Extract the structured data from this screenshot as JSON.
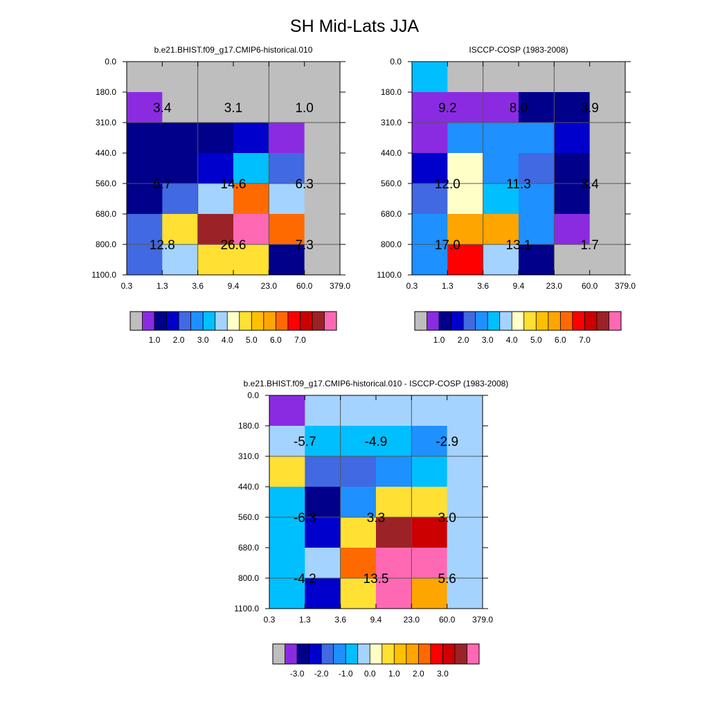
{
  "title": "SH Mid-Lats JJA",
  "chart_data": [
    {
      "type": "heatmap",
      "title": "b.e21.BHIST.f09_g17.CMIP6-historical.010",
      "x_ticks": [
        "0.3",
        "1.3",
        "3.6",
        "9.4",
        "23.0",
        "60.0",
        "379.0"
      ],
      "y_ticks": [
        "0.0",
        "180.0",
        "310.0",
        "440.0",
        "560.0",
        "680.0",
        "800.0",
        "1100.0"
      ],
      "cells": [
        [
          "#BEBEBE",
          "#BEBEBE",
          "#BEBEBE",
          "#BEBEBE",
          "#BEBEBE",
          "#BEBEBE"
        ],
        [
          "#8A2BE2",
          "#BEBEBE",
          "#BEBEBE",
          "#BEBEBE",
          "#BEBEBE",
          "#BEBEBE"
        ],
        [
          "#00008B",
          "#00008B",
          "#00008B",
          "#0000CD",
          "#8A2BE2",
          "#BEBEBE"
        ],
        [
          "#00008B",
          "#00008B",
          "#0000CD",
          "#00BFFF",
          "#4169E1",
          "#BEBEBE"
        ],
        [
          "#00008B",
          "#4169E1",
          "#A4D3FF",
          "#FF6A00",
          "#A4D3FF",
          "#BEBEBE"
        ],
        [
          "#4169E1",
          "#FFE033",
          "#9B2226",
          "#FF69B4",
          "#FF6A00",
          "#BEBEBE"
        ],
        [
          "#4169E1",
          "#A4D3FF",
          "#FFE033",
          "#FFE033",
          "#00008B",
          "#BEBEBE"
        ]
      ],
      "annotations": [
        {
          "text": "3.4",
          "x": 1,
          "y": 1.5
        },
        {
          "text": "3.1",
          "x": 3,
          "y": 1.5
        },
        {
          "text": "1.0",
          "x": 5,
          "y": 1.5
        },
        {
          "text": "5.7",
          "x": 1,
          "y": 4
        },
        {
          "text": "14.6",
          "x": 3,
          "y": 4
        },
        {
          "text": "6.3",
          "x": 5,
          "y": 4
        },
        {
          "text": "12.8",
          "x": 1,
          "y": 6
        },
        {
          "text": "26.6",
          "x": 3,
          "y": 6
        },
        {
          "text": "7.3",
          "x": 5,
          "y": 6
        }
      ],
      "colorbar": {
        "colors": [
          "#BEBEBE",
          "#8A2BE2",
          "#00008B",
          "#0000CD",
          "#4169E1",
          "#1E90FF",
          "#00BFFF",
          "#A4D3FF",
          "#FFFFC8",
          "#FFE033",
          "#FFC000",
          "#FFA500",
          "#FF6A00",
          "#FF0000",
          "#CC0000",
          "#9B2226",
          "#FF69B4"
        ],
        "labels": [
          "1.0",
          "2.0",
          "3.0",
          "4.0",
          "5.0",
          "6.0",
          "7.0"
        ],
        "label_start_boundary": 2,
        "label_step": 2
      }
    },
    {
      "type": "heatmap",
      "title": "ISCCP-COSP (1983-2008)",
      "x_ticks": [
        "0.3",
        "1.3",
        "3.6",
        "9.4",
        "23.0",
        "60.0",
        "379.0"
      ],
      "y_ticks": [
        "0.0",
        "180.0",
        "310.0",
        "440.0",
        "560.0",
        "680.0",
        "800.0",
        "1100.0"
      ],
      "cells": [
        [
          "#00BFFF",
          "#BEBEBE",
          "#BEBEBE",
          "#BEBEBE",
          "#BEBEBE",
          "#BEBEBE"
        ],
        [
          "#8A2BE2",
          "#8A2BE2",
          "#8A2BE2",
          "#00008B",
          "#00008B",
          "#BEBEBE"
        ],
        [
          "#8A2BE2",
          "#1E90FF",
          "#1E90FF",
          "#1E90FF",
          "#0000CD",
          "#BEBEBE"
        ],
        [
          "#0000CD",
          "#FFFFC8",
          "#1E90FF",
          "#4169E1",
          "#00008B",
          "#BEBEBE"
        ],
        [
          "#4169E1",
          "#FFFFC8",
          "#00BFFF",
          "#1E90FF",
          "#00008B",
          "#BEBEBE"
        ],
        [
          "#1E90FF",
          "#FFA500",
          "#FFA500",
          "#1E90FF",
          "#8A2BE2",
          "#BEBEBE"
        ],
        [
          "#1E90FF",
          "#FF0000",
          "#A4D3FF",
          "#00008B",
          "#BEBEBE",
          "#BEBEBE"
        ]
      ],
      "annotations": [
        {
          "text": "9.2",
          "x": 1,
          "y": 1.5
        },
        {
          "text": "8.0",
          "x": 3,
          "y": 1.5
        },
        {
          "text": "3.9",
          "x": 5,
          "y": 1.5
        },
        {
          "text": "12.0",
          "x": 1,
          "y": 4
        },
        {
          "text": "11.3",
          "x": 3,
          "y": 4
        },
        {
          "text": "3.4",
          "x": 5,
          "y": 4
        },
        {
          "text": "17.0",
          "x": 1,
          "y": 6
        },
        {
          "text": "13.1",
          "x": 3,
          "y": 6
        },
        {
          "text": "1.7",
          "x": 5,
          "y": 6
        }
      ],
      "colorbar": {
        "colors": [
          "#BEBEBE",
          "#8A2BE2",
          "#00008B",
          "#0000CD",
          "#4169E1",
          "#1E90FF",
          "#00BFFF",
          "#A4D3FF",
          "#FFFFC8",
          "#FFE033",
          "#FFC000",
          "#FFA500",
          "#FF6A00",
          "#FF0000",
          "#CC0000",
          "#9B2226",
          "#FF69B4"
        ],
        "labels": [
          "1.0",
          "2.0",
          "3.0",
          "4.0",
          "5.0",
          "6.0",
          "7.0"
        ],
        "label_start_boundary": 2,
        "label_step": 2
      }
    },
    {
      "type": "heatmap",
      "title": "b.e21.BHIST.f09_g17.CMIP6-historical.010 - ISCCP-COSP (1983-2008)",
      "x_ticks": [
        "0.3",
        "1.3",
        "3.6",
        "9.4",
        "23.0",
        "60.0",
        "379.0"
      ],
      "y_ticks": [
        "0.0",
        "180.0",
        "310.0",
        "440.0",
        "560.0",
        "680.0",
        "800.0",
        "1100.0"
      ],
      "cells": [
        [
          "#8A2BE2",
          "#A4D3FF",
          "#A4D3FF",
          "#A4D3FF",
          "#A4D3FF",
          "#A4D3FF"
        ],
        [
          "#A4D3FF",
          "#00BFFF",
          "#00BFFF",
          "#00BFFF",
          "#1E90FF",
          "#A4D3FF"
        ],
        [
          "#FFE033",
          "#4169E1",
          "#4169E1",
          "#1E90FF",
          "#00BFFF",
          "#A4D3FF"
        ],
        [
          "#00BFFF",
          "#00008B",
          "#1E90FF",
          "#FFE033",
          "#FFE033",
          "#A4D3FF"
        ],
        [
          "#00BFFF",
          "#0000CD",
          "#FFE033",
          "#9B2226",
          "#CC0000",
          "#A4D3FF"
        ],
        [
          "#00BFFF",
          "#A4D3FF",
          "#FF6A00",
          "#FF69B4",
          "#FF69B4",
          "#A4D3FF"
        ],
        [
          "#00BFFF",
          "#0000CD",
          "#FFE033",
          "#FF69B4",
          "#FFA500",
          "#A4D3FF"
        ]
      ],
      "annotations": [
        {
          "text": "-5.7",
          "x": 1,
          "y": 1.5
        },
        {
          "text": "-4.9",
          "x": 3,
          "y": 1.5
        },
        {
          "text": "-2.9",
          "x": 5,
          "y": 1.5
        },
        {
          "text": "-6.3",
          "x": 1,
          "y": 4
        },
        {
          "text": "3.3",
          "x": 3,
          "y": 4
        },
        {
          "text": "3.0",
          "x": 5,
          "y": 4
        },
        {
          "text": "-4.2",
          "x": 1,
          "y": 6
        },
        {
          "text": "13.5",
          "x": 3,
          "y": 6
        },
        {
          "text": "5.6",
          "x": 5,
          "y": 6
        }
      ],
      "colorbar": {
        "colors": [
          "#BEBEBE",
          "#8A2BE2",
          "#00008B",
          "#0000CD",
          "#4169E1",
          "#1E90FF",
          "#00BFFF",
          "#A4D3FF",
          "#FFFFC8",
          "#FFE033",
          "#FFC000",
          "#FFA500",
          "#FF6A00",
          "#FF0000",
          "#CC0000",
          "#9B2226",
          "#FF69B4"
        ],
        "labels": [
          "-3.0",
          "-2.0",
          "-1.0",
          "0.0",
          "1.0",
          "2.0",
          "3.0"
        ],
        "label_start_boundary": 2,
        "label_step": 2
      }
    }
  ]
}
